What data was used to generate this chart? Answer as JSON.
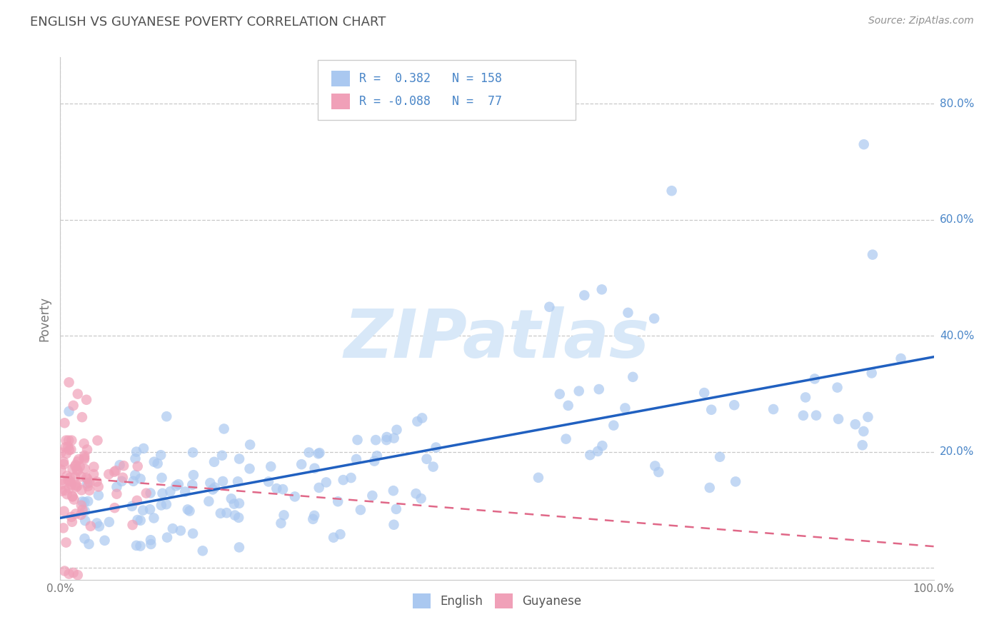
{
  "title": "ENGLISH VS GUYANESE POVERTY CORRELATION CHART",
  "source_text": "Source: ZipAtlas.com",
  "ylabel": "Poverty",
  "xlim": [
    0.0,
    1.0
  ],
  "ylim": [
    -0.02,
    0.88
  ],
  "x_ticks": [
    0.0,
    0.1,
    0.2,
    0.3,
    0.4,
    0.5,
    0.6,
    0.7,
    0.8,
    0.9,
    1.0
  ],
  "y_ticks": [
    0.0,
    0.2,
    0.4,
    0.6,
    0.8
  ],
  "y_tick_labels": [
    "",
    "20.0%",
    "40.0%",
    "60.0%",
    "80.0%"
  ],
  "grid_color": "#c8c8c8",
  "background_color": "#ffffff",
  "title_color": "#505050",
  "source_color": "#909090",
  "english_color": "#aac8f0",
  "guyanese_color": "#f0a0b8",
  "english_line_color": "#2060c0",
  "guyanese_line_color": "#e06888",
  "english_R": 0.382,
  "english_N": 158,
  "guyanese_R": -0.088,
  "guyanese_N": 77,
  "watermark_text": "ZIPatlas",
  "watermark_color": "#d8e8f8",
  "legend_english_color": "#aac8f0",
  "legend_guyanese_color": "#f0a0b8",
  "legend_text_color": "#4a86c8"
}
